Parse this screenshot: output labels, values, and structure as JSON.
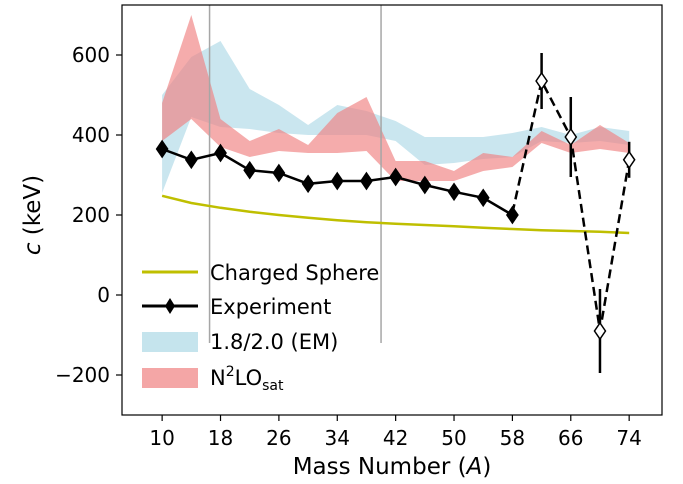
{
  "chart_data": {
    "type": "line",
    "xlabel": "Mass Number (A)",
    "xlabel_main": "Mass Number (",
    "xlabel_var": "A",
    "xlabel_close": ")",
    "ylabel": "c (keV)",
    "ylabel_var": "c",
    "ylabel_rest": " (keV)",
    "xlim": [
      4.5,
      78.5
    ],
    "ylim": [
      -300,
      725
    ],
    "x_ticks": [
      10,
      18,
      26,
      34,
      42,
      50,
      58,
      66,
      74
    ],
    "y_ticks": [
      -200,
      0,
      200,
      400,
      600
    ],
    "y_tick_labels": [
      "−200",
      "0",
      "200",
      "400",
      "600"
    ],
    "vertical_lines": [
      16.5,
      40
    ],
    "grid": false,
    "legend_position": "lower-left",
    "colors": {
      "charged_sphere": "#bfbf00",
      "experiment": "#000000",
      "em_band": "#add8e6",
      "n2lo_band": "#f08080",
      "vline": "#a6a6a6"
    },
    "legend": [
      {
        "key": "charged",
        "label": "Charged Sphere"
      },
      {
        "key": "experiment",
        "label": "Experiment"
      },
      {
        "key": "em",
        "label": "1.8/2.0 (EM)"
      },
      {
        "key": "n2lo",
        "label_base": "N",
        "label_sup": "2",
        "label_mid": "LO",
        "label_sub": "sat"
      }
    ],
    "series": [
      {
        "name": "Charged Sphere",
        "style": "line",
        "x": [
          10,
          14,
          18,
          22,
          26,
          30,
          34,
          38,
          42,
          46,
          50,
          54,
          58,
          62,
          66,
          70,
          74
        ],
        "y": [
          248,
          230,
          218,
          208,
          200,
          193,
          187,
          182,
          178,
          175,
          172,
          168,
          165,
          162,
          160,
          158,
          155
        ]
      },
      {
        "name": "Experiment",
        "style": "filled-diamond-solid",
        "x": [
          10,
          14,
          18,
          22,
          26,
          30,
          34,
          38,
          42,
          46,
          50,
          54,
          58
        ],
        "y": [
          365,
          338,
          355,
          312,
          305,
          278,
          285,
          285,
          295,
          275,
          258,
          243,
          200
        ],
        "err": [
          15,
          14,
          15,
          14,
          14,
          14,
          14,
          14,
          14,
          14,
          14,
          14,
          17
        ]
      },
      {
        "name": "Experiment (dashed)",
        "style": "open-diamond-dashed",
        "x": [
          58,
          62,
          66,
          70,
          74
        ],
        "y": [
          205,
          535,
          395,
          -90,
          338
        ],
        "err": [
          0,
          70,
          100,
          105,
          45
        ]
      },
      {
        "name": "1.8/2.0 (EM)",
        "style": "band",
        "x": [
          10,
          14,
          18,
          22,
          26,
          30,
          34,
          38,
          42,
          46,
          50,
          54,
          58,
          62,
          66,
          70,
          74
        ],
        "upper": [
          500,
          595,
          635,
          515,
          475,
          425,
          475,
          460,
          435,
          395,
          395,
          395,
          405,
          420,
          400,
          420,
          410
        ],
        "lower": [
          255,
          445,
          420,
          415,
          405,
          400,
          400,
          400,
          385,
          325,
          330,
          340,
          345,
          385,
          380,
          385,
          375
        ]
      },
      {
        "name": "N2LO_sat",
        "style": "band",
        "x": [
          10,
          14,
          18,
          22,
          26,
          30,
          34,
          38,
          42,
          46,
          50,
          54,
          58,
          62,
          66,
          70,
          74
        ],
        "upper": [
          480,
          700,
          440,
          385,
          415,
          375,
          455,
          495,
          335,
          335,
          310,
          355,
          345,
          410,
          375,
          425,
          380
        ],
        "lower": [
          385,
          440,
          370,
          345,
          360,
          355,
          355,
          360,
          285,
          285,
          285,
          310,
          320,
          380,
          355,
          365,
          355
        ]
      }
    ]
  }
}
